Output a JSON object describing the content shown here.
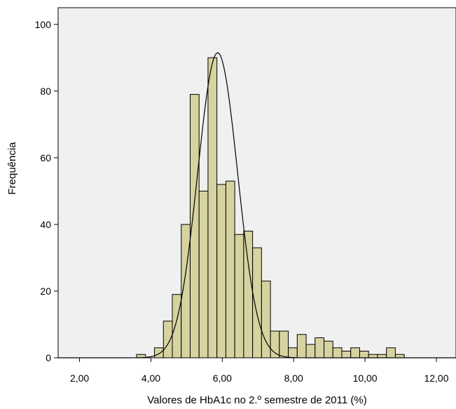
{
  "chart_data": {
    "type": "bar",
    "subtype": "histogram",
    "xlabel": "Valores de HbA1c no 2.º semestre de 2011 (%)",
    "ylabel": "Frequência",
    "xlim": [
      1.4,
      12.55
    ],
    "ylim": [
      0,
      105
    ],
    "x_ticks": [
      {
        "value": 2,
        "label": "2,00"
      },
      {
        "value": 4,
        "label": "4,00"
      },
      {
        "value": 6,
        "label": "6,00"
      },
      {
        "value": 8,
        "label": "8,00"
      },
      {
        "value": 10,
        "label": "10,00"
      },
      {
        "value": 12,
        "label": "12,00"
      }
    ],
    "y_ticks": [
      {
        "value": 0,
        "label": "0"
      },
      {
        "value": 20,
        "label": "20"
      },
      {
        "value": 40,
        "label": "40"
      },
      {
        "value": 60,
        "label": "60"
      },
      {
        "value": 80,
        "label": "80"
      },
      {
        "value": 100,
        "label": "100"
      }
    ],
    "bin_width": 0.25,
    "bins": [
      {
        "x0": 3.6,
        "count": 1
      },
      {
        "x0": 4.1,
        "count": 3
      },
      {
        "x0": 4.35,
        "count": 11
      },
      {
        "x0": 4.6,
        "count": 19
      },
      {
        "x0": 4.85,
        "count": 40
      },
      {
        "x0": 5.1,
        "count": 79
      },
      {
        "x0": 5.35,
        "count": 50
      },
      {
        "x0": 5.6,
        "count": 90
      },
      {
        "x0": 5.85,
        "count": 52
      },
      {
        "x0": 6.1,
        "count": 53
      },
      {
        "x0": 6.35,
        "count": 37
      },
      {
        "x0": 6.6,
        "count": 38
      },
      {
        "x0": 6.85,
        "count": 33
      },
      {
        "x0": 7.1,
        "count": 23
      },
      {
        "x0": 7.35,
        "count": 8
      },
      {
        "x0": 7.6,
        "count": 8
      },
      {
        "x0": 7.85,
        "count": 3
      },
      {
        "x0": 8.1,
        "count": 7
      },
      {
        "x0": 8.35,
        "count": 4
      },
      {
        "x0": 8.6,
        "count": 6
      },
      {
        "x0": 8.85,
        "count": 5
      },
      {
        "x0": 9.1,
        "count": 3
      },
      {
        "x0": 9.35,
        "count": 2
      },
      {
        "x0": 9.6,
        "count": 3
      },
      {
        "x0": 9.85,
        "count": 2
      },
      {
        "x0": 10.1,
        "count": 1
      },
      {
        "x0": 10.35,
        "count": 1
      },
      {
        "x0": 10.6,
        "count": 3
      },
      {
        "x0": 10.85,
        "count": 1
      }
    ],
    "normal_curve": {
      "mean": 5.87,
      "sd": 0.56,
      "peak": 91.5
    },
    "grid": false,
    "colors": {
      "plot_background": "#f0f0f0",
      "bar_fill": "#d6d3a0",
      "bar_stroke": "#000000",
      "curve": "#000000"
    }
  }
}
